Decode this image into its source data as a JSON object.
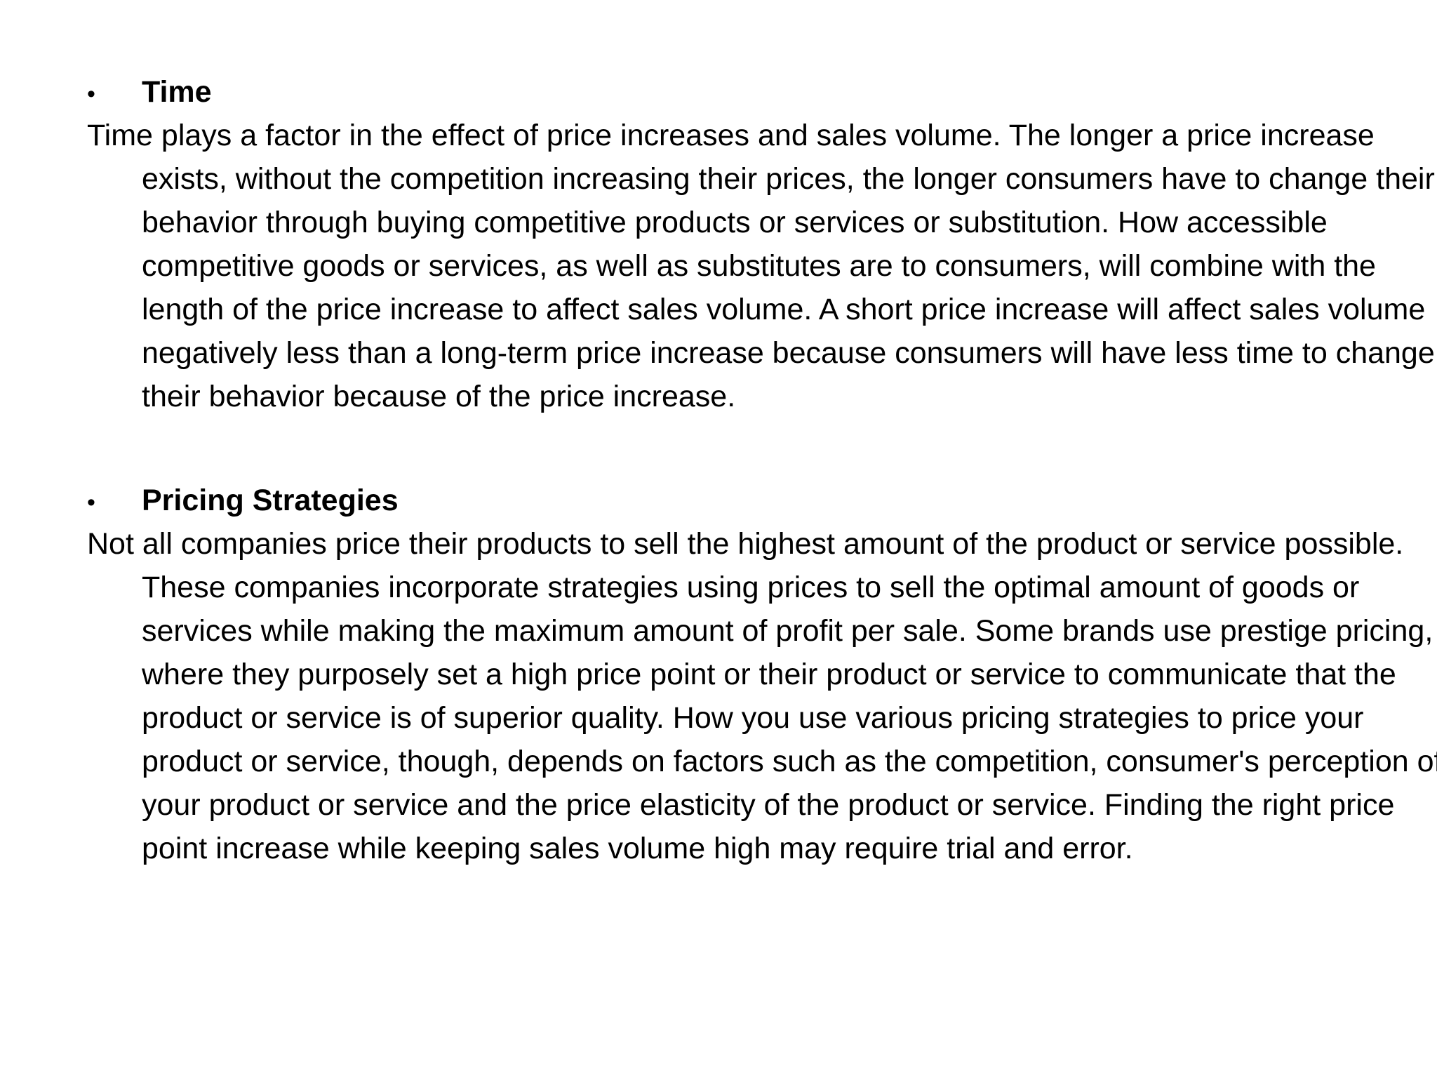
{
  "sections": [
    {
      "bullet": "•",
      "heading": "Time",
      "body": "Time plays a factor in the effect of price increases and sales volume. The longer a price increase exists, without the competition increasing their prices, the longer consumers have to change their behavior through buying competitive products or services or substitution. How accessible competitive goods or services, as well as substitutes are to consumers, will combine with the length of the price increase to affect sales volume. A short price increase will affect sales volume negatively less than a long-term price increase because consumers will have less time to change their behavior because of the price increase."
    },
    {
      "bullet": "•",
      "heading": "Pricing Strategies",
      "body": "Not all companies price their products to sell the highest amount of the product or service possible. These companies incorporate strategies using prices to sell the optimal amount of goods or services while making the maximum amount of profit per sale. Some brands use prestige pricing, where they purposely set a high price point or their product or service to communicate that the product or service is of superior quality. How you use various pricing strategies to price your product or service, though, depends on factors such as the competition, consumer's perception of your product or service and the price elasticity of the product or service. Finding the right price point increase while keeping sales volume high may require trial and error."
    }
  ]
}
